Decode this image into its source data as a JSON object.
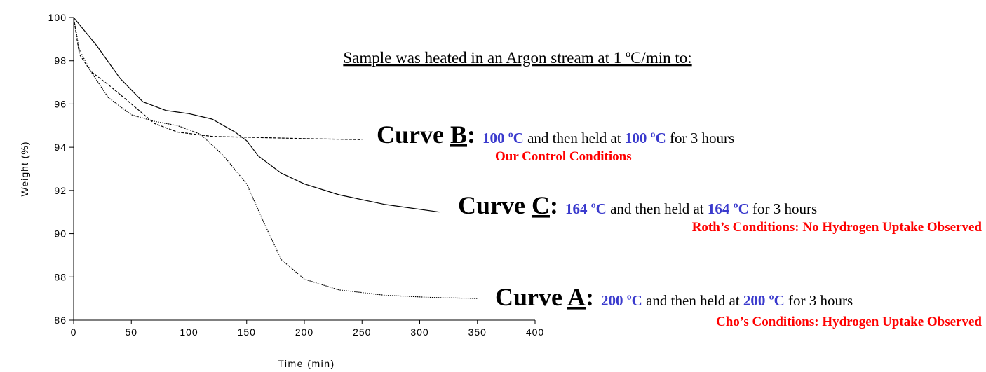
{
  "chart_data": {
    "type": "line",
    "xlabel": "Time (min)",
    "ylabel": "Weight (%)",
    "xlim": [
      0,
      400
    ],
    "xticks": [
      0,
      50,
      100,
      150,
      200,
      250,
      300,
      350,
      400
    ],
    "ylim": [
      86,
      100
    ],
    "yticks": [
      86,
      88,
      90,
      92,
      94,
      96,
      98,
      100
    ],
    "header": "Sample was heated in an Argon stream at 1 ºC/min to:",
    "highlight_color": "#3a3acd",
    "note_color": "#ff0000",
    "series": [
      {
        "name": "A",
        "color": "#000000",
        "linestyle": "dotted",
        "x": [
          0,
          5,
          15,
          30,
          50,
          70,
          90,
          110,
          130,
          150,
          165,
          180,
          200,
          230,
          270,
          310,
          350
        ],
        "values": [
          100,
          98.5,
          97.5,
          96.3,
          95.5,
          95.2,
          95.0,
          94.6,
          93.6,
          92.3,
          90.5,
          88.8,
          87.9,
          87.4,
          87.15,
          87.05,
          87.0
        ]
      },
      {
        "name": "B",
        "color": "#000000",
        "linestyle": "dashed",
        "x": [
          0,
          5,
          15,
          30,
          50,
          70,
          90,
          120,
          160,
          200,
          250
        ],
        "values": [
          100,
          98.3,
          97.5,
          96.9,
          96.0,
          95.1,
          94.7,
          94.5,
          94.45,
          94.4,
          94.35
        ]
      },
      {
        "name": "C",
        "color": "#000000",
        "linestyle": "solid",
        "x": [
          0,
          20,
          40,
          60,
          80,
          100,
          120,
          140,
          150,
          160,
          180,
          200,
          230,
          270,
          317
        ],
        "values": [
          100,
          98.7,
          97.2,
          96.1,
          95.7,
          95.55,
          95.3,
          94.7,
          94.3,
          93.6,
          92.8,
          92.3,
          91.8,
          91.35,
          91.0
        ]
      }
    ],
    "annotations": [
      {
        "label": "Curve ",
        "letter": "B",
        "colon": ":",
        "detail": [
          "100 ºC",
          " and then held at ",
          "100 ºC",
          " for 3 hours"
        ],
        "note": "Our Control Conditions"
      },
      {
        "label": "Curve ",
        "letter": "C",
        "colon": ":",
        "detail": [
          "164 ºC",
          " and then held at ",
          "164 ºC",
          " for 3 hours"
        ],
        "note": "Roth’s Conditions: No Hydrogen Uptake Observed"
      },
      {
        "label": "Curve ",
        "letter": "A",
        "colon": ":",
        "detail": [
          "200 ºC",
          " and then held at ",
          "200 ºC",
          " for 3 hours"
        ],
        "note": "Cho’s Conditions: Hydrogen Uptake Observed"
      }
    ]
  }
}
